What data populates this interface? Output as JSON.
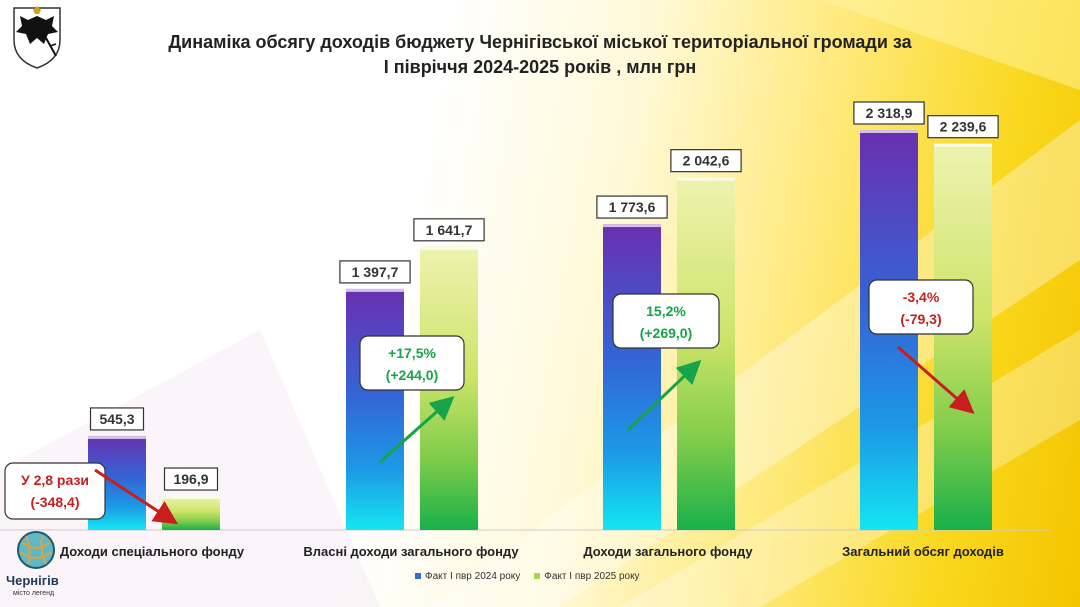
{
  "colors": {
    "series_2024_top": "#6a2fb0",
    "series_2024_bottom": "#14e6f2",
    "series_2025_top": "#e8f0a0",
    "series_2025_bottom": "#18b04a",
    "increase": "#16a34a",
    "decrease": "#c81e1e"
  },
  "logo": {
    "city_name": "Чернігів",
    "tagline": "місто легенд"
  },
  "chart_data": {
    "type": "bar",
    "title": "Динаміка обсягу доходів  бюджету Чернігівської міської територіальної громади за І півріччя 2024-2025 років , млн грн",
    "title_lines": [
      "Динаміка обсягу доходів  бюджету Чернігівської міської територіальної громади за",
      "І півріччя 2024-2025 років , млн грн"
    ],
    "categories": [
      "Доходи спеціального фонду",
      "Власні доходи загального фонду",
      "Доходи загального фонду",
      "Загальний обсяг доходів"
    ],
    "series": [
      {
        "name": "Факт І пвр 2024 року",
        "values": [
          545.3,
          1397.7,
          1773.6,
          2318.9
        ],
        "labels": [
          "545,3",
          "1 397,7",
          "1 773,6",
          "2 318,9"
        ]
      },
      {
        "name": "Факт І пвр 2025 року",
        "values": [
          196.9,
          1641.7,
          2042.6,
          2239.6
        ],
        "labels": [
          "196,9",
          "1 641,7",
          "2 042,6",
          "2 239,6"
        ]
      }
    ],
    "annotations": [
      {
        "category": "Доходи спеціального фонду",
        "line1": "У 2,8 рази",
        "line2": "(-348,4)",
        "direction": "down"
      },
      {
        "category": "Власні доходи загального фонду",
        "line1": "+17,5%",
        "line2": "(+244,0)",
        "direction": "up"
      },
      {
        "category": "Доходи загального фонду",
        "line1": "15,2%",
        "line2": "(+269,0)",
        "direction": "up"
      },
      {
        "category": "Загальний обсяг доходів",
        "line1": "-3,4%",
        "line2": "(-79,3)",
        "direction": "down"
      }
    ],
    "xlabel": "",
    "ylabel": "",
    "ylim": [
      0,
      2400
    ],
    "grid": false,
    "legend": "bottom-center"
  }
}
